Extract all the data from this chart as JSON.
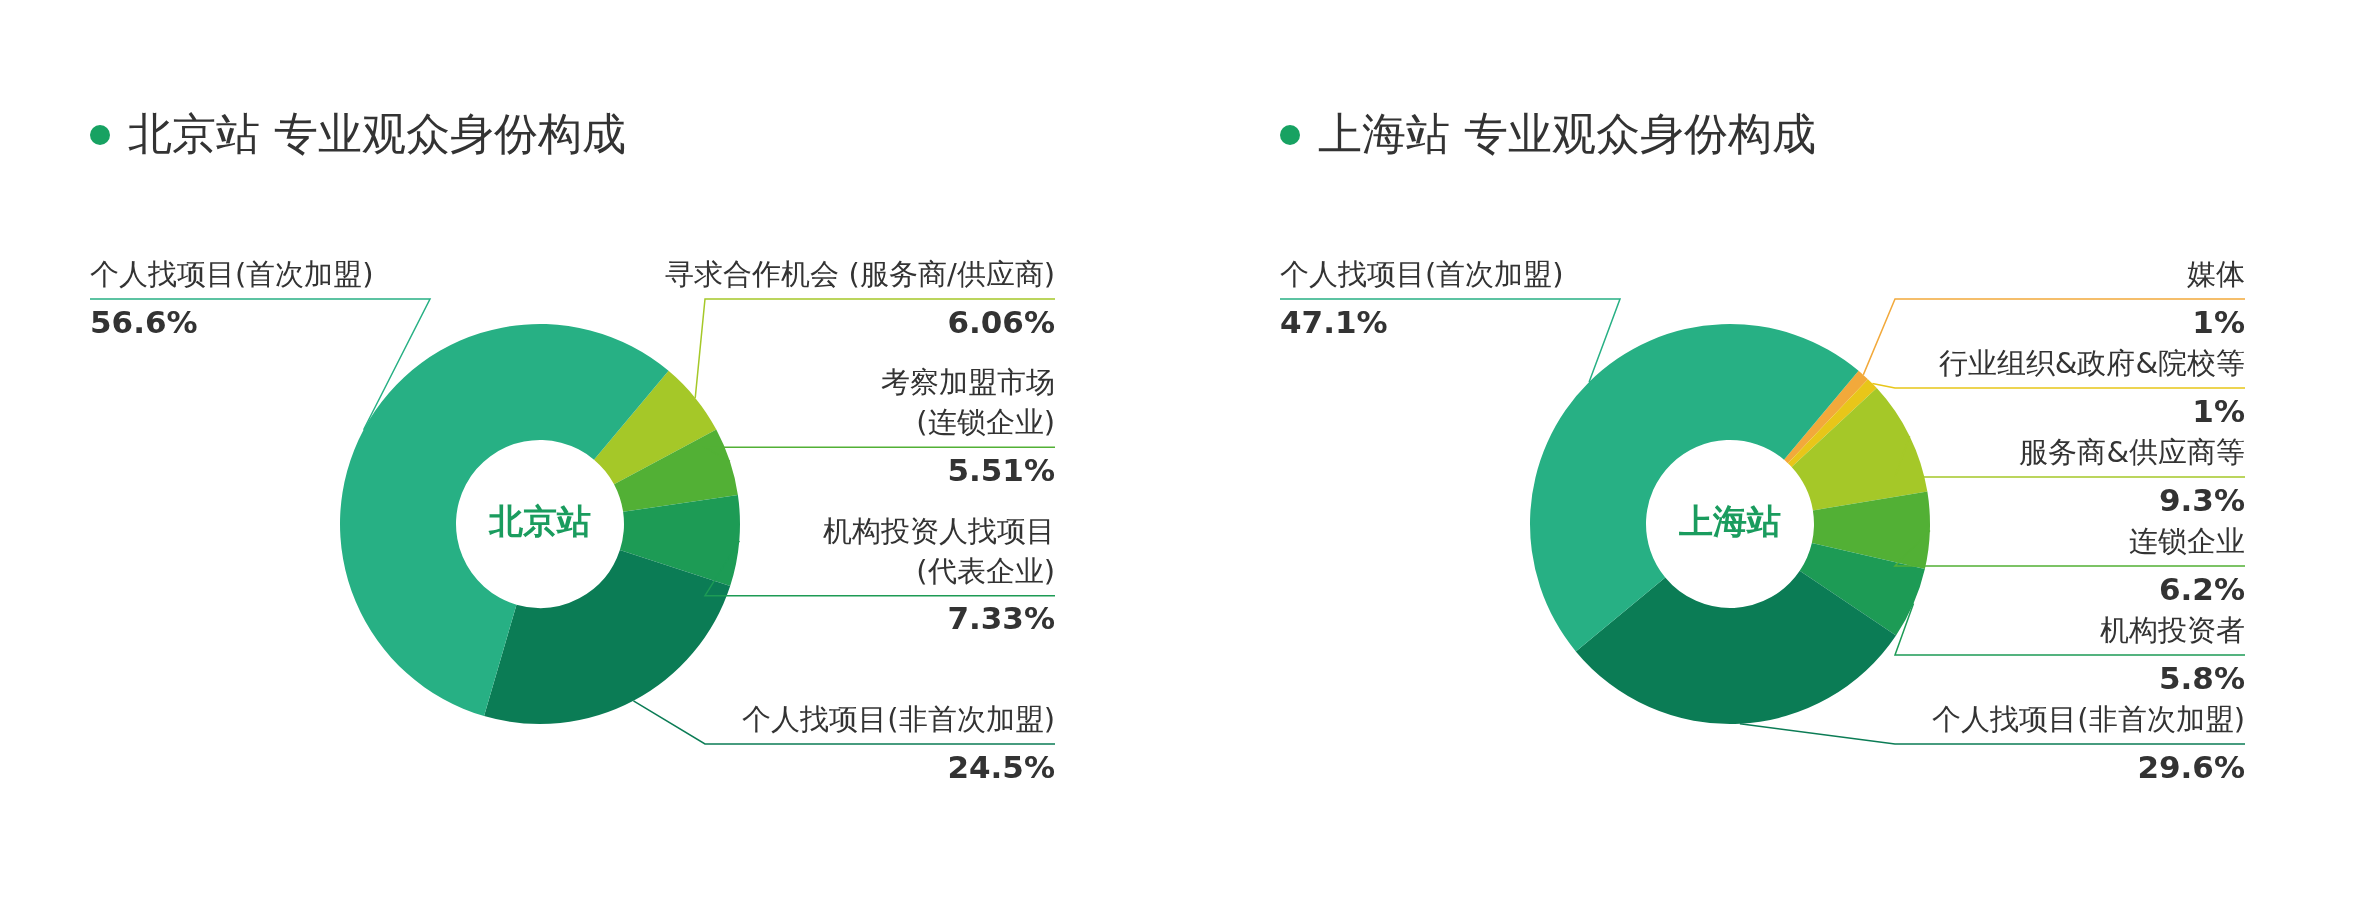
{
  "chart_data": [
    {
      "type": "donut",
      "title": "北京站 专业观众身份构成",
      "categories": [
        "寻求合作机会 (服务商/供应商)",
        "考察加盟市场\n(连锁企业)",
        "机构投资人找项目\n(代表企业)",
        "个人找项目(非首次加盟)",
        "个人找项目(首次加盟)"
      ],
      "values": [
        6.06,
        5.51,
        7.33,
        24.5,
        56.6
      ],
      "colors": [
        "#a5c828",
        "#52b035",
        "#1d9b55",
        "#0b7c55",
        "#27b084"
      ],
      "value_labels": [
        "6.06%",
        "5.51%",
        "7.33%",
        "24.5%",
        "56.6%"
      ],
      "annotations": [
        "北京站"
      ],
      "legend": false
    },
    {
      "type": "donut",
      "title": "上海站 专业观众身份构成",
      "categories": [
        "媒体",
        "行业组织&政府&院校等",
        "服务商&供应商等",
        "连锁企业",
        "机构投资者",
        "个人找项目(非首次加盟)",
        "个人找项目(首次加盟)"
      ],
      "values": [
        1,
        1,
        9.3,
        6.2,
        5.8,
        29.6,
        47.1
      ],
      "colors": [
        "#f2a93b",
        "#e8c619",
        "#a5c828",
        "#52b035",
        "#1d9b55",
        "#0b7c55",
        "#27b084"
      ],
      "value_labels": [
        "1%",
        "1%",
        "9.3%",
        "6.2%",
        "5.8%",
        "29.6%",
        "47.1%"
      ],
      "annotations": [
        "上海站"
      ],
      "legend": false
    }
  ]
}
